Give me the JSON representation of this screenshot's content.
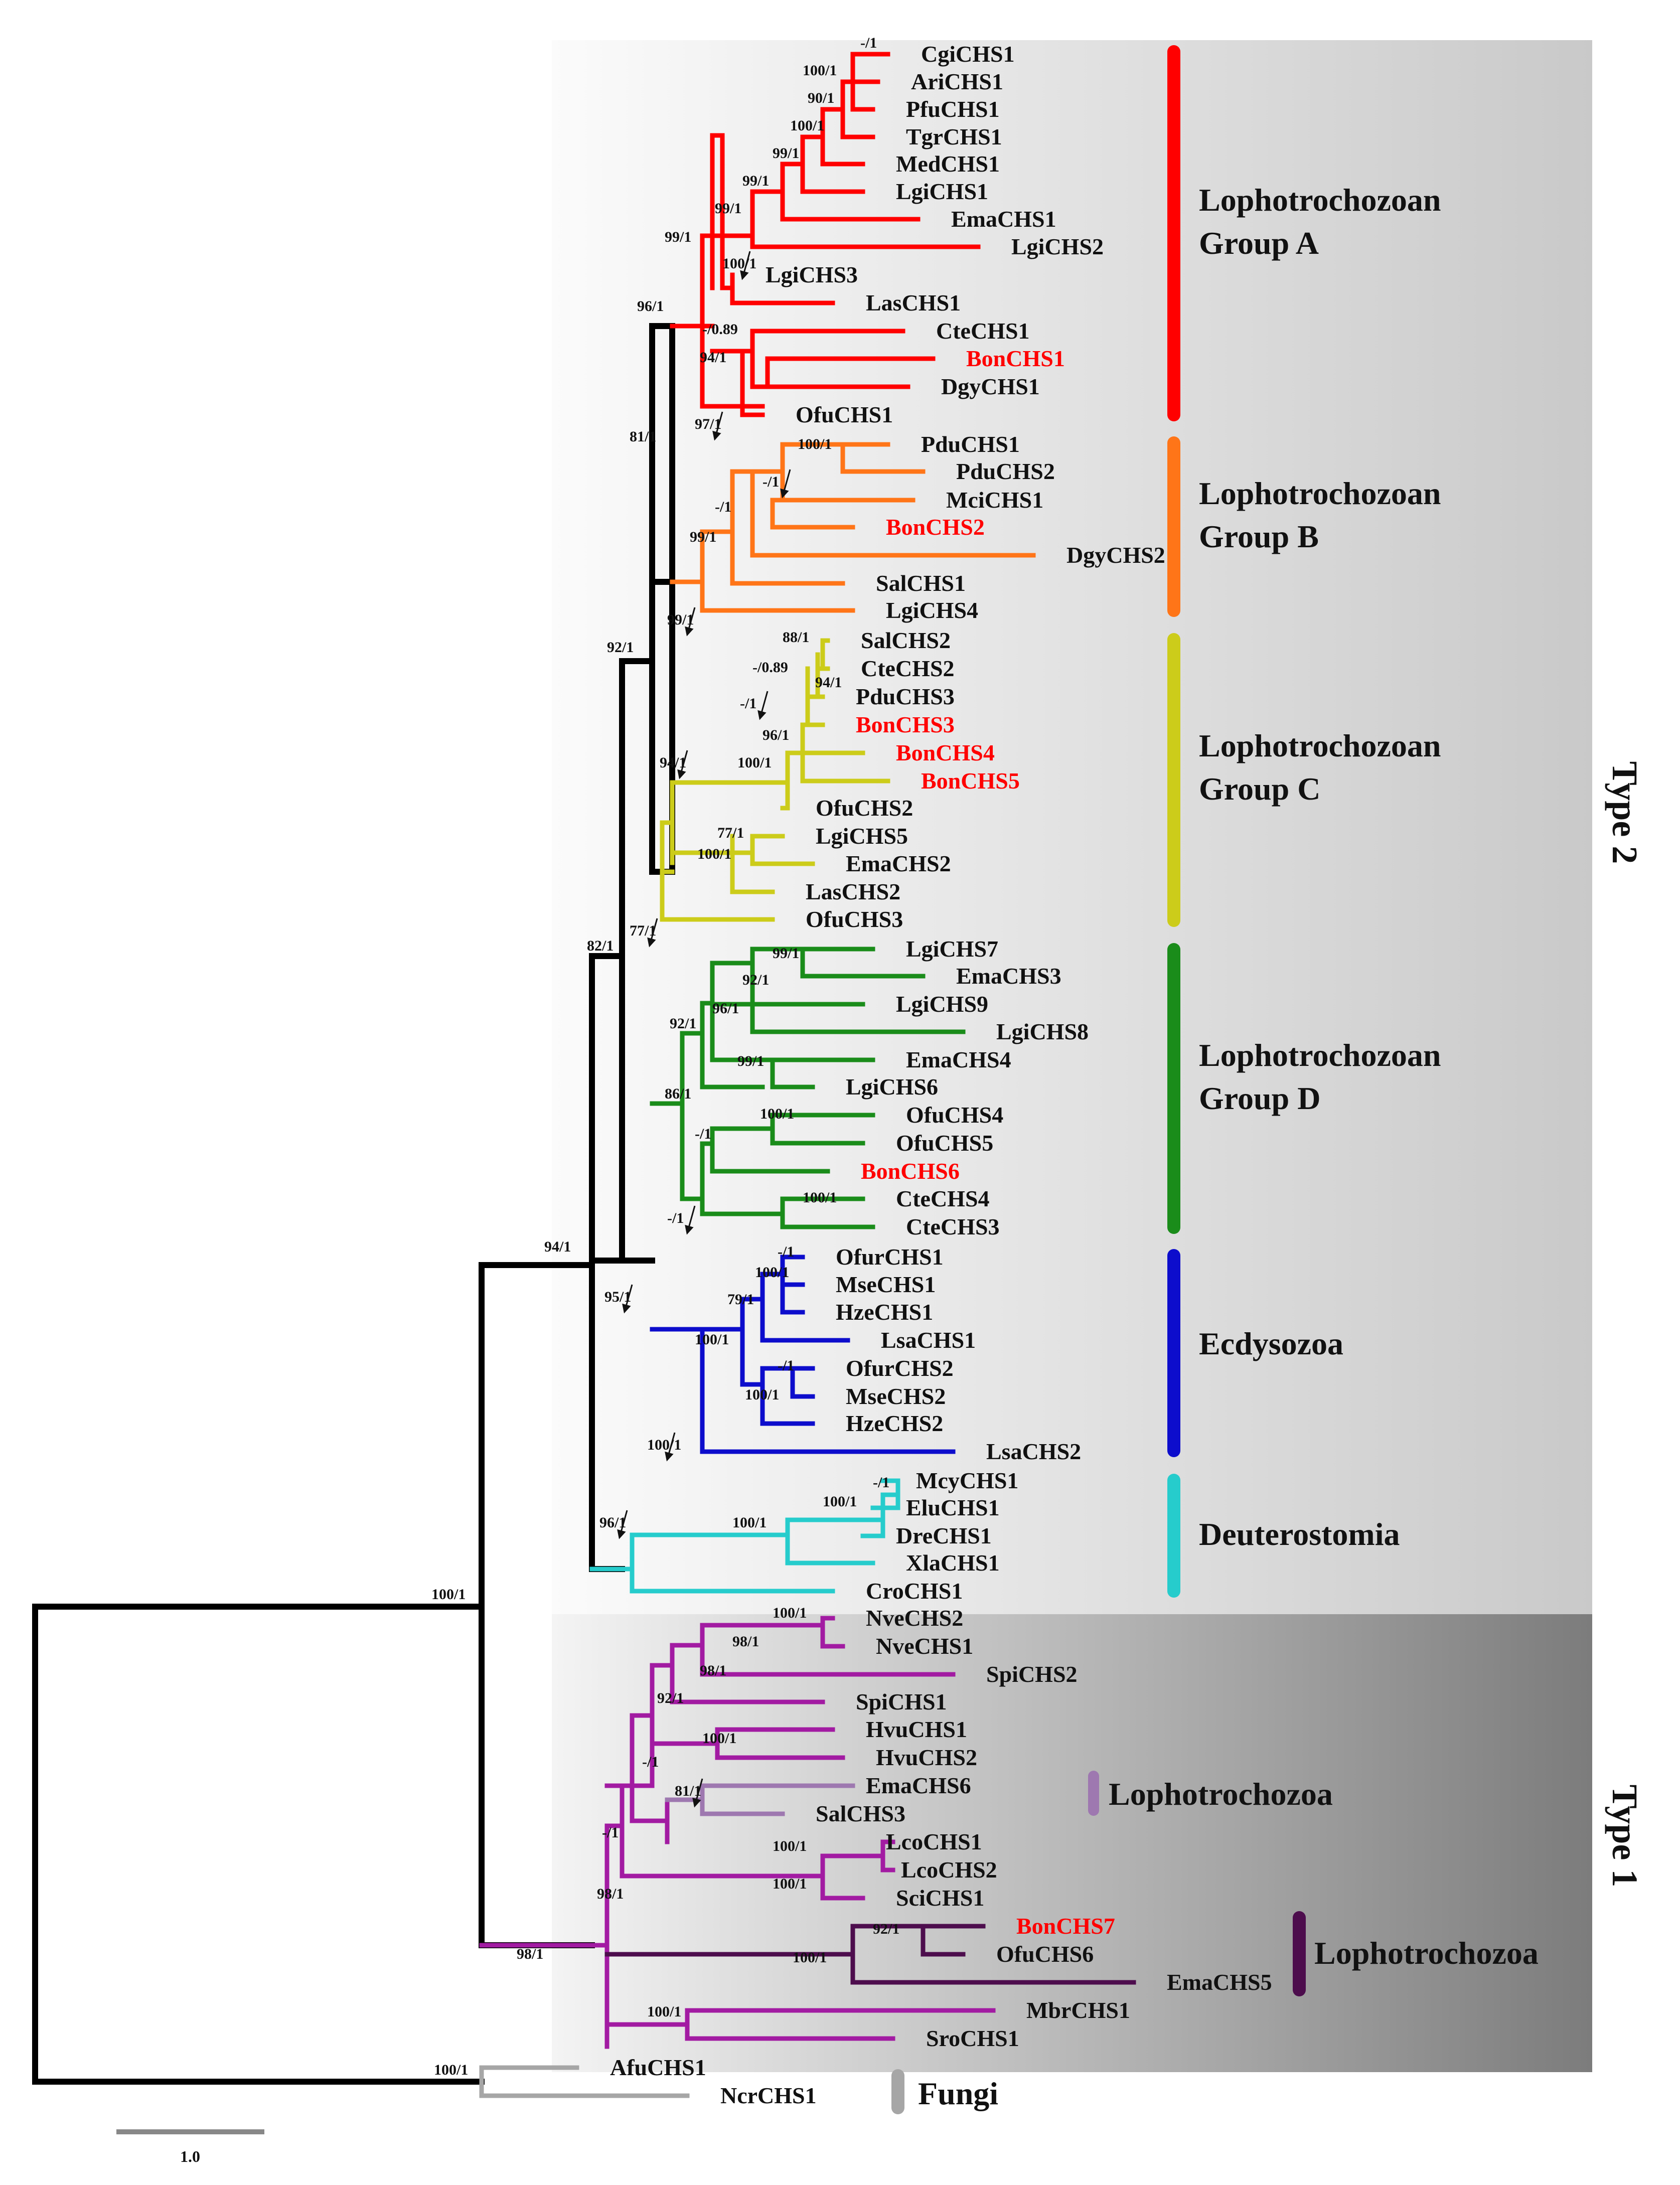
{
  "figure": {
    "type_labels": {
      "type2": "Type 2",
      "type1": "Type 1"
    },
    "scale_bar": {
      "label": "1.0",
      "value": 1.0
    }
  },
  "clade_labels": [
    {
      "id": "groupA",
      "lines": [
        "Lophotrochozoan",
        "Group A"
      ],
      "color": "#ff0000"
    },
    {
      "id": "groupB",
      "lines": [
        "Lophotrochozoan",
        "Group B"
      ],
      "color": "#ff7518"
    },
    {
      "id": "groupC",
      "lines": [
        "Lophotrochozoan",
        "Group C"
      ],
      "color": "#cccc1a"
    },
    {
      "id": "groupD",
      "lines": [
        "Lophotrochozoan",
        "Group D"
      ],
      "color": "#1a8c1a"
    },
    {
      "id": "ecdysozoa",
      "lines": [
        "Ecdysozoa"
      ],
      "color": "#0d0dcc"
    },
    {
      "id": "deuterostomia",
      "lines": [
        "Deuterostomia"
      ],
      "color": "#26cccc"
    },
    {
      "id": "lopho1",
      "lines": [
        "Lophotrochozoa"
      ],
      "color": "#9e78b0"
    },
    {
      "id": "lopho2",
      "lines": [
        "Lophotrochozoa"
      ],
      "color": "#4d0d4d"
    },
    {
      "id": "fungi",
      "lines": [
        "Fungi"
      ],
      "color": "#a6a6a6"
    }
  ],
  "leaves": [
    {
      "name": "CgiCHS1",
      "highlight": false
    },
    {
      "name": "AriCHS1",
      "highlight": false
    },
    {
      "name": "PfuCHS1",
      "highlight": false
    },
    {
      "name": "TgrCHS1",
      "highlight": false
    },
    {
      "name": "MedCHS1",
      "highlight": false
    },
    {
      "name": "LgiCHS1",
      "highlight": false
    },
    {
      "name": "EmaCHS1",
      "highlight": false
    },
    {
      "name": "LgiCHS2",
      "highlight": false
    },
    {
      "name": "LgiCHS3",
      "highlight": false
    },
    {
      "name": "LasCHS1",
      "highlight": false
    },
    {
      "name": "CteCHS1",
      "highlight": false
    },
    {
      "name": "BonCHS1",
      "highlight": true
    },
    {
      "name": "DgyCHS1",
      "highlight": false
    },
    {
      "name": "OfuCHS1",
      "highlight": false
    },
    {
      "name": "PduCHS1",
      "highlight": false
    },
    {
      "name": "PduCHS2",
      "highlight": false
    },
    {
      "name": "MciCHS1",
      "highlight": false
    },
    {
      "name": "BonCHS2",
      "highlight": true
    },
    {
      "name": "DgyCHS2",
      "highlight": false
    },
    {
      "name": "SalCHS1",
      "highlight": false
    },
    {
      "name": "LgiCHS4",
      "highlight": false
    },
    {
      "name": "SalCHS2",
      "highlight": false
    },
    {
      "name": "CteCHS2",
      "highlight": false
    },
    {
      "name": "PduCHS3",
      "highlight": false
    },
    {
      "name": "BonCHS3",
      "highlight": true
    },
    {
      "name": "BonCHS4",
      "highlight": true
    },
    {
      "name": "BonCHS5",
      "highlight": true
    },
    {
      "name": "OfuCHS2",
      "highlight": false
    },
    {
      "name": "LgiCHS5",
      "highlight": false
    },
    {
      "name": "EmaCHS2",
      "highlight": false
    },
    {
      "name": "LasCHS2",
      "highlight": false
    },
    {
      "name": "OfuCHS3",
      "highlight": false
    },
    {
      "name": "LgiCHS7",
      "highlight": false
    },
    {
      "name": "EmaCHS3",
      "highlight": false
    },
    {
      "name": "LgiCHS9",
      "highlight": false
    },
    {
      "name": "LgiCHS8",
      "highlight": false
    },
    {
      "name": "EmaCHS4",
      "highlight": false
    },
    {
      "name": "LgiCHS6",
      "highlight": false
    },
    {
      "name": "OfuCHS4",
      "highlight": false
    },
    {
      "name": "OfuCHS5",
      "highlight": false
    },
    {
      "name": "BonCHS6",
      "highlight": true
    },
    {
      "name": "CteCHS4",
      "highlight": false
    },
    {
      "name": "CteCHS3",
      "highlight": false
    },
    {
      "name": "OfurCHS1",
      "highlight": false
    },
    {
      "name": "MseCHS1",
      "highlight": false
    },
    {
      "name": "HzeCHS1",
      "highlight": false
    },
    {
      "name": "LsaCHS1",
      "highlight": false
    },
    {
      "name": "OfurCHS2",
      "highlight": false
    },
    {
      "name": "MseCHS2",
      "highlight": false
    },
    {
      "name": "HzeCHS2",
      "highlight": false
    },
    {
      "name": "LsaCHS2",
      "highlight": false
    },
    {
      "name": "McyCHS1",
      "highlight": false
    },
    {
      "name": "EluCHS1",
      "highlight": false
    },
    {
      "name": "DreCHS1",
      "highlight": false
    },
    {
      "name": "XlaCHS1",
      "highlight": false
    },
    {
      "name": "CroCHS1",
      "highlight": false
    },
    {
      "name": "NveCHS2",
      "highlight": false
    },
    {
      "name": "NveCHS1",
      "highlight": false
    },
    {
      "name": "SpiCHS2",
      "highlight": false
    },
    {
      "name": "SpiCHS1",
      "highlight": false
    },
    {
      "name": "HvuCHS1",
      "highlight": false
    },
    {
      "name": "HvuCHS2",
      "highlight": false
    },
    {
      "name": "EmaCHS6",
      "highlight": false
    },
    {
      "name": "SalCHS3",
      "highlight": false
    },
    {
      "name": "LcoCHS1",
      "highlight": false
    },
    {
      "name": "LcoCHS2",
      "highlight": false
    },
    {
      "name": "SciCHS1",
      "highlight": false
    },
    {
      "name": "BonCHS7",
      "highlight": true
    },
    {
      "name": "OfuCHS6",
      "highlight": false
    },
    {
      "name": "EmaCHS5",
      "highlight": false
    },
    {
      "name": "MbrCHS1",
      "highlight": false
    },
    {
      "name": "SroCHS1",
      "highlight": false
    },
    {
      "name": "AfuCHS1",
      "highlight": false
    },
    {
      "name": "NcrCHS1",
      "highlight": false
    }
  ],
  "support_values": [
    "-/1",
    "100/1",
    "90/1",
    "100/1",
    "99/1",
    "99/1",
    "99/1",
    "99/1",
    "100/1",
    "96/1",
    "-/0.89",
    "94/1",
    "97/1",
    "81/1",
    "100/1",
    "-/1",
    "-/1",
    "99/1",
    "99/1",
    "92/1",
    "88/1",
    "-/0.89",
    "94/1",
    "-/1",
    "96/1",
    "100/1",
    "94/1",
    "77/1",
    "100/1",
    "77/1",
    "82/1",
    "99/1",
    "92/1",
    "96/1",
    "92/1",
    "99/1",
    "86/1",
    "100/1",
    "-/1",
    "100/1",
    "-/1",
    "94/1",
    "95/1",
    "-/1",
    "100/1",
    "79/1",
    "100/1",
    "-/1",
    "100/1",
    "100/1",
    "-/1",
    "100/1",
    "100/1",
    "96/1",
    "100/1",
    "100/1",
    "98/1",
    "98/1",
    "92/1",
    "100/1",
    "-/1",
    "81/1",
    "-/1",
    "100/1",
    "100/1",
    "98/1",
    "92/1",
    "100/1",
    "98/1",
    "100/1",
    "100/1"
  ]
}
